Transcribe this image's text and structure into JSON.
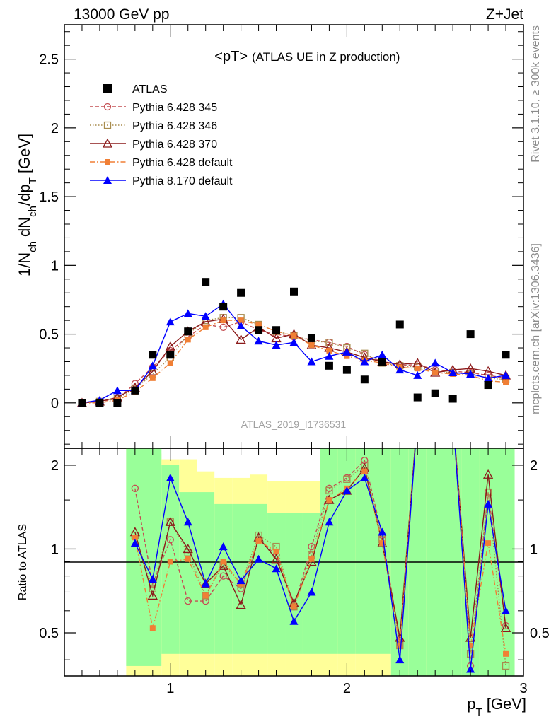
{
  "header": {
    "left": "13000 GeV pp",
    "right": "Z+Jet",
    "title": "<pT>",
    "subtitle": "(ATLAS UE in Z production)",
    "analysis": "ATLAS_2019_I1736531",
    "side_top": "Rivet 3.1.10, ≥ 300k events",
    "side_bottom": "mcplots.cern.ch [arXiv:1306.3436]"
  },
  "axes": {
    "ylabel_main": "1/N_ch dN_ch/dp_T [GeV]",
    "ylabel_ratio": "Ratio to ATLAS",
    "xlabel": "p_T [GeV]",
    "main_ticks": [
      "0",
      "0.5",
      "1",
      "1.5",
      "2",
      "2.5"
    ],
    "ratio_ticks": [
      "0.5",
      "1",
      "2"
    ],
    "x_ticks": [
      "1",
      "2",
      "3"
    ]
  },
  "chart_data": {
    "type": "scatter",
    "x": [
      0.5,
      0.6,
      0.7,
      0.8,
      0.9,
      1.0,
      1.1,
      1.2,
      1.3,
      1.4,
      1.5,
      1.6,
      1.7,
      1.8,
      1.9,
      2.0,
      2.1,
      2.2,
      2.3,
      2.4,
      2.5,
      2.6,
      2.7,
      2.8,
      2.9
    ],
    "xlim": [
      0.4,
      3.0
    ],
    "ylim": [
      -0.33,
      2.75
    ],
    "ratio_ylim": [
      0.35,
      2.3
    ],
    "ratio_scale": "log",
    "band_edges": [
      0.75,
      0.85,
      0.95,
      1.05,
      1.15,
      1.25,
      1.35,
      1.45,
      1.55,
      1.65,
      1.75,
      1.85,
      1.95,
      2.05,
      2.15,
      2.25,
      2.35,
      2.45,
      2.55,
      2.65,
      2.75,
      2.85,
      2.95
    ],
    "band_inner": [
      [
        0.38,
        2.3
      ],
      [
        0.38,
        2.3
      ],
      [
        0.42,
        2.0
      ],
      [
        0.42,
        1.6
      ],
      [
        0.42,
        1.6
      ],
      [
        0.42,
        1.45
      ],
      [
        0.42,
        1.45
      ],
      [
        0.42,
        1.45
      ],
      [
        0.42,
        1.35
      ],
      [
        0.42,
        1.35
      ],
      [
        0.42,
        1.35
      ],
      [
        0.42,
        2.3
      ],
      [
        0.42,
        2.3
      ],
      [
        0.42,
        2.3
      ],
      [
        0.42,
        2.3
      ],
      [
        0.35,
        2.3
      ],
      [
        0.35,
        2.3
      ],
      [
        0.35,
        2.3
      ],
      [
        0.35,
        2.3
      ],
      [
        0.35,
        2.3
      ],
      [
        0.35,
        2.3
      ],
      [
        0.35,
        2.3
      ]
    ],
    "band_outer": [
      [
        0.35,
        2.3
      ],
      [
        0.35,
        2.2
      ],
      [
        0.35,
        2.1
      ],
      [
        0.35,
        2.1
      ],
      [
        0.35,
        1.9
      ],
      [
        0.35,
        1.8
      ],
      [
        0.35,
        1.8
      ],
      [
        0.35,
        1.85
      ],
      [
        0.35,
        1.75
      ],
      [
        0.35,
        1.75
      ],
      [
        0.35,
        1.75
      ],
      [
        0.35,
        2.3
      ],
      [
        0.35,
        2.3
      ],
      [
        0.35,
        2.3
      ],
      [
        0.35,
        2.3
      ],
      [
        0.35,
        2.3
      ],
      [
        0.35,
        2.3
      ],
      [
        0.35,
        2.3
      ],
      [
        0.35,
        2.3
      ],
      [
        0.35,
        2.3
      ],
      [
        0.35,
        2.3
      ],
      [
        0.35,
        2.3
      ]
    ],
    "series": [
      {
        "name": "ATLAS",
        "color": "#000000",
        "marker": "square",
        "line": "none",
        "values": [
          0.0,
          0.0,
          0.0,
          0.09,
          0.35,
          0.35,
          0.52,
          0.88,
          0.7,
          0.8,
          0.53,
          0.53,
          0.81,
          0.47,
          0.27,
          0.24,
          0.17,
          0.3,
          0.57,
          0.04,
          0.07,
          0.03,
          0.5,
          0.13,
          0.35
        ],
        "ratio": null
      },
      {
        "name": "Pythia 6.428 345",
        "color": "#c44e52",
        "marker": "circle-open",
        "line": "dashed",
        "values": [
          0.0,
          0.01,
          0.03,
          0.14,
          0.26,
          0.38,
          0.48,
          0.57,
          0.55,
          0.59,
          0.53,
          0.5,
          0.48,
          0.46,
          0.44,
          0.41,
          0.35,
          0.3,
          0.27,
          0.28,
          0.24,
          0.23,
          0.22,
          0.2,
          0.18
        ],
        "ratio": [
          null,
          null,
          null,
          1.65,
          0.75,
          1.08,
          0.65,
          0.65,
          0.8,
          0.72,
          1.08,
          0.95,
          0.62,
          1.02,
          1.65,
          1.8,
          2.08,
          1.12,
          0.47,
          null,
          null,
          null,
          0.38,
          1.6,
          0.53
        ]
      },
      {
        "name": "Pythia 6.428 346",
        "color": "#a88c4e",
        "marker": "square-open",
        "line": "dotted",
        "values": [
          0.0,
          0.01,
          0.03,
          0.1,
          0.21,
          0.33,
          0.5,
          0.6,
          0.62,
          0.62,
          0.57,
          0.52,
          0.49,
          0.45,
          0.44,
          0.4,
          0.36,
          0.29,
          0.27,
          0.26,
          0.23,
          0.22,
          0.21,
          0.18,
          0.17
        ],
        "ratio": [
          null,
          null,
          null,
          1.12,
          0.72,
          1.25,
          0.97,
          0.68,
          0.88,
          0.75,
          1.12,
          1.02,
          0.62,
          0.95,
          1.62,
          1.78,
          2.0,
          1.08,
          0.45,
          null,
          null,
          null,
          0.42,
          1.6,
          0.38
        ]
      },
      {
        "name": "Pythia 6.428 370",
        "color": "#8b1a1a",
        "marker": "triangle-open",
        "line": "solid",
        "values": [
          0.0,
          0.01,
          0.04,
          0.11,
          0.23,
          0.41,
          0.52,
          0.59,
          0.61,
          0.46,
          0.55,
          0.47,
          0.5,
          0.42,
          0.4,
          0.37,
          0.33,
          0.3,
          0.28,
          0.29,
          0.22,
          0.24,
          0.25,
          0.23,
          0.2
        ],
        "ratio": [
          null,
          null,
          null,
          1.15,
          0.68,
          1.25,
          1.0,
          0.75,
          0.87,
          0.63,
          1.1,
          0.92,
          0.64,
          0.9,
          1.5,
          1.62,
          1.95,
          1.05,
          0.48,
          null,
          null,
          null,
          0.48,
          1.85,
          0.52
        ]
      },
      {
        "name": "Pythia 6.428 default",
        "color": "#f07f35",
        "marker": "square-filled",
        "line": "dashdot",
        "values": [
          0.0,
          0.0,
          0.02,
          0.08,
          0.18,
          0.29,
          0.46,
          0.55,
          0.6,
          0.6,
          0.57,
          0.52,
          0.49,
          0.42,
          0.38,
          0.34,
          0.31,
          0.29,
          0.26,
          0.25,
          0.22,
          0.21,
          0.2,
          0.16,
          0.15
        ],
        "ratio": [
          null,
          null,
          null,
          1.1,
          0.52,
          0.9,
          0.92,
          0.68,
          0.9,
          0.75,
          1.07,
          0.98,
          0.62,
          0.92,
          1.5,
          1.65,
          1.9,
          1.05,
          0.45,
          null,
          null,
          null,
          0.45,
          1.05,
          0.42
        ]
      },
      {
        "name": "Pythia 8.170 default",
        "color": "#0000ff",
        "marker": "triangle-filled",
        "line": "solid",
        "values": [
          0.0,
          0.02,
          0.09,
          0.09,
          0.27,
          0.59,
          0.65,
          0.63,
          0.72,
          0.56,
          0.45,
          0.42,
          0.44,
          0.3,
          0.34,
          0.37,
          0.3,
          0.35,
          0.24,
          0.2,
          0.29,
          0.22,
          0.21,
          0.18,
          0.2
        ],
        "ratio": [
          null,
          null,
          null,
          1.05,
          0.78,
          1.8,
          1.25,
          0.75,
          1.02,
          0.77,
          0.92,
          0.85,
          0.55,
          0.7,
          1.25,
          1.62,
          1.8,
          1.15,
          0.4,
          null,
          null,
          null,
          0.37,
          1.45,
          0.6
        ]
      }
    ],
    "legend_position": "top-left"
  }
}
